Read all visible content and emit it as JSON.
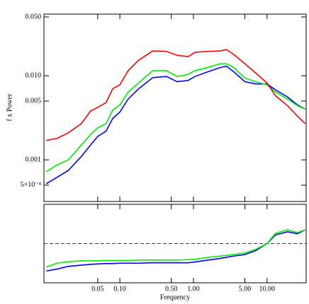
{
  "chart_data": [
    {
      "type": "line",
      "ylabel": "f x Power",
      "xscale": "log",
      "yscale": "log",
      "xlim": [
        0.0093,
        34
      ],
      "ylim": [
        0.00032,
        0.054
      ],
      "yticks": [
        {
          "value": 0.05,
          "label": "0.050"
        },
        {
          "value": 0.01,
          "label": "0.010"
        },
        0.005,
        0.001,
        {
          "value": 0.0005,
          "label": "5×10⁻⁴"
        }
      ],
      "x": [
        0.01,
        0.014,
        0.02,
        0.03,
        0.04,
        0.05,
        0.065,
        0.08,
        0.1,
        0.13,
        0.18,
        0.28,
        0.43,
        0.6,
        0.85,
        1.05,
        1.6,
        2.3,
        2.8,
        3.5,
        5,
        7,
        10,
        13,
        19,
        26,
        33
      ],
      "series": [
        {
          "name": "red",
          "color": "#ff0000",
          "values": [
            0.0017,
            0.0018,
            0.0021,
            0.0027,
            0.0038,
            0.0042,
            0.0048,
            0.007,
            0.0078,
            0.0115,
            0.0153,
            0.0197,
            0.0195,
            0.0175,
            0.0169,
            0.019,
            0.0195,
            0.0197,
            0.0205,
            0.018,
            0.0139,
            0.0108,
            0.0082,
            0.0058,
            0.0044,
            0.0033,
            0.0027
          ]
        },
        {
          "name": "green",
          "color": "#00ee00",
          "values": [
            0.00072,
            0.00087,
            0.001,
            0.0015,
            0.002,
            0.0024,
            0.0027,
            0.0039,
            0.0045,
            0.0064,
            0.0082,
            0.0115,
            0.0115,
            0.0098,
            0.0104,
            0.0115,
            0.0126,
            0.0139,
            0.0139,
            0.0126,
            0.0094,
            0.0085,
            0.0078,
            0.0064,
            0.0053,
            0.0044,
            0.004
          ]
        },
        {
          "name": "blue",
          "color": "#0000ff",
          "values": [
            0.00052,
            0.00062,
            0.00075,
            0.0011,
            0.0015,
            0.0019,
            0.0022,
            0.0031,
            0.0037,
            0.0053,
            0.007,
            0.0095,
            0.0098,
            0.0085,
            0.0088,
            0.0098,
            0.0112,
            0.0125,
            0.013,
            0.0112,
            0.0085,
            0.008,
            0.008,
            0.0068,
            0.0056,
            0.0045,
            0.004
          ]
        }
      ]
    },
    {
      "type": "line",
      "xlabel": "Frequency",
      "xscale": "log",
      "xlim": [
        0.0093,
        34
      ],
      "ylim": [
        0,
        2
      ],
      "reference_line": 1,
      "xticks": [
        0.05,
        {
          "value": 0.1,
          "label": "0.10"
        },
        {
          "value": 0.5,
          "label": "0.50"
        },
        {
          "value": 1,
          "label": "1.00"
        },
        {
          "value": 5,
          "label": "5.00"
        },
        {
          "value": 10,
          "label": "10.00"
        }
      ],
      "x": [
        0.01,
        0.014,
        0.02,
        0.03,
        0.04,
        0.05,
        0.065,
        0.08,
        0.1,
        0.13,
        0.18,
        0.28,
        0.43,
        0.6,
        0.85,
        1.05,
        1.6,
        2.3,
        2.8,
        3.5,
        5,
        7,
        10,
        13,
        19,
        26,
        33
      ],
      "series": [
        {
          "name": "green",
          "color": "#00ee00",
          "values": [
            0.4,
            0.5,
            0.54,
            0.56,
            0.56,
            0.56,
            0.57,
            0.57,
            0.57,
            0.57,
            0.58,
            0.58,
            0.58,
            0.58,
            0.59,
            0.6,
            0.65,
            0.68,
            0.7,
            0.72,
            0.76,
            0.85,
            1.0,
            1.26,
            1.35,
            1.28,
            1.35
          ]
        },
        {
          "name": "blue",
          "color": "#0000ff",
          "values": [
            0.3,
            0.35,
            0.42,
            0.45,
            0.47,
            0.48,
            0.49,
            0.49,
            0.5,
            0.5,
            0.5,
            0.51,
            0.51,
            0.51,
            0.51,
            0.53,
            0.58,
            0.62,
            0.65,
            0.68,
            0.72,
            0.82,
            1.0,
            1.22,
            1.3,
            1.25,
            1.35
          ]
        }
      ]
    }
  ]
}
